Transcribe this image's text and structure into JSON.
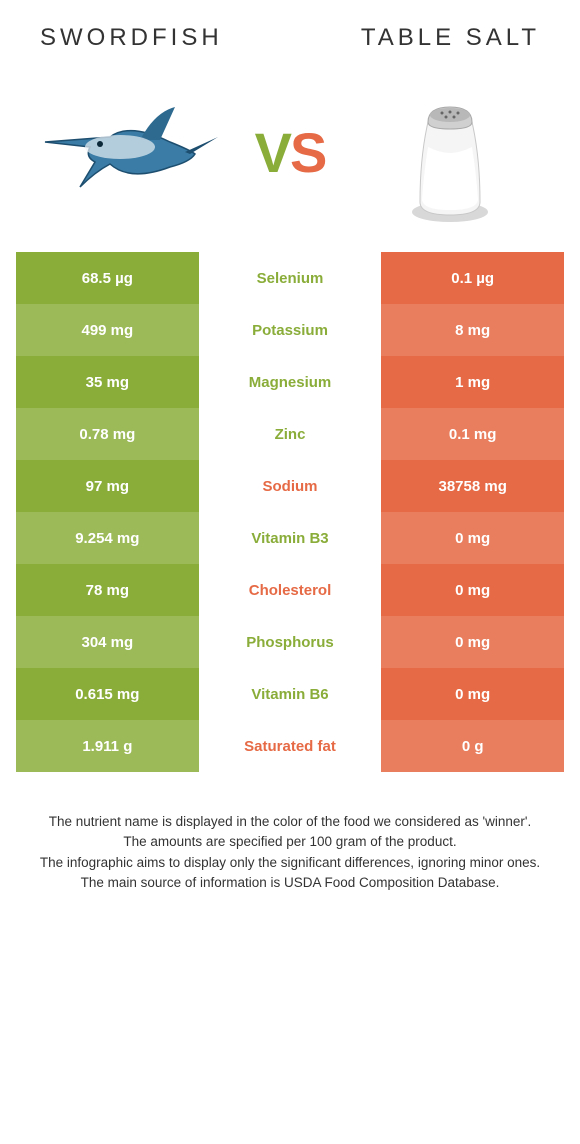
{
  "header": {
    "left_title": "Swordfish",
    "right_title": "Table salt",
    "vs_v": "V",
    "vs_s": "S"
  },
  "colors": {
    "left_primary": "#8aad3a",
    "left_alt": "#9cba57",
    "right_primary": "#e66a45",
    "right_alt": "#e87e5e",
    "text_on_color": "#ffffff",
    "background": "#ffffff"
  },
  "typography": {
    "title_fontsize": 24,
    "title_letter_spacing": 4,
    "vs_fontsize": 56,
    "cell_fontsize": 15,
    "footer_fontsize": 13.5
  },
  "rows": [
    {
      "left": "68.5 µg",
      "name": "Selenium",
      "right": "0.1 µg",
      "winner": "left"
    },
    {
      "left": "499 mg",
      "name": "Potassium",
      "right": "8 mg",
      "winner": "left"
    },
    {
      "left": "35 mg",
      "name": "Magnesium",
      "right": "1 mg",
      "winner": "left"
    },
    {
      "left": "0.78 mg",
      "name": "Zinc",
      "right": "0.1 mg",
      "winner": "left"
    },
    {
      "left": "97 mg",
      "name": "Sodium",
      "right": "38758 mg",
      "winner": "right"
    },
    {
      "left": "9.254 mg",
      "name": "Vitamin B3",
      "right": "0 mg",
      "winner": "left"
    },
    {
      "left": "78 mg",
      "name": "Cholesterol",
      "right": "0 mg",
      "winner": "right"
    },
    {
      "left": "304 mg",
      "name": "Phosphorus",
      "right": "0 mg",
      "winner": "left"
    },
    {
      "left": "0.615 mg",
      "name": "Vitamin B6",
      "right": "0 mg",
      "winner": "left"
    },
    {
      "left": "1.911 g",
      "name": "Saturated fat",
      "right": "0 g",
      "winner": "right"
    }
  ],
  "footer": {
    "line1": "The nutrient name is displayed in the color of the food we considered as 'winner'.",
    "line2": "The amounts are specified per 100 gram of the product.",
    "line3": "The infographic aims to display only the significant differences, ignoring minor ones.",
    "line4": "The main source of information is USDA Food Composition Database."
  }
}
